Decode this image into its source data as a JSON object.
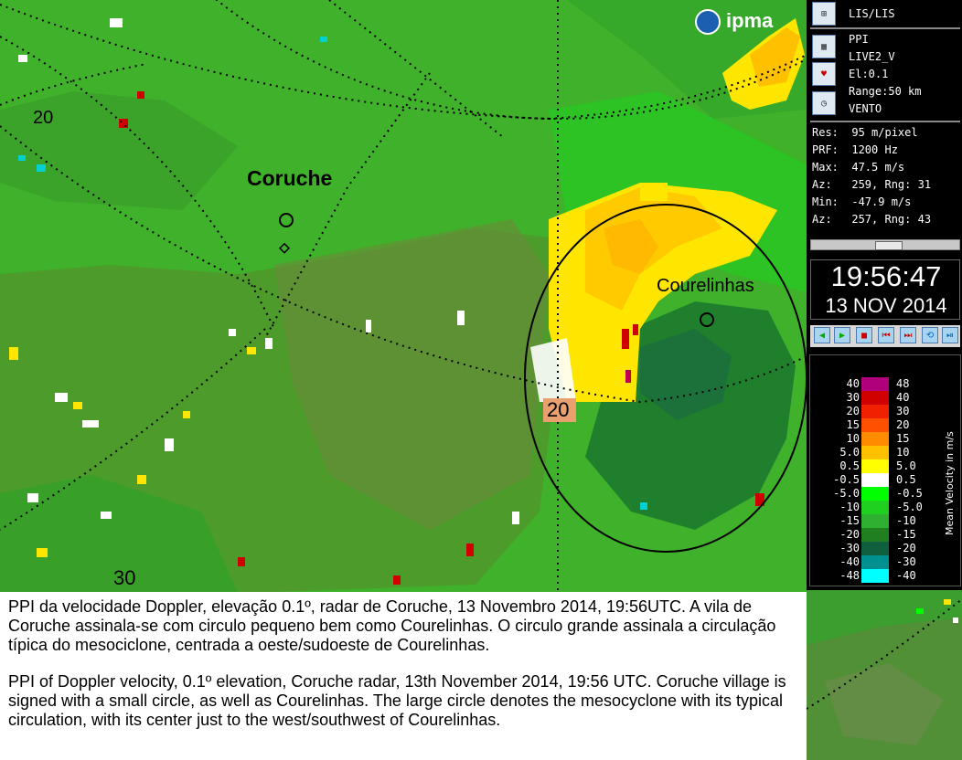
{
  "map": {
    "places": [
      "Coruche",
      "Courelinhas"
    ],
    "range_labels": [
      "20",
      "20",
      "30"
    ]
  },
  "logo": {
    "text": "ipma"
  },
  "panel": {
    "source": "LIS/LIS",
    "product_lines": [
      "PPI",
      "LIVE2_V",
      "El:0.1",
      "Range:50 km",
      "VENTO"
    ],
    "info_lines": [
      "Res:  95 m/pixel",
      "PRF:  1200 Hz",
      "Max:  47.5 m/s",
      "Az:   259, Rng: 31",
      "Min:  -47.9 m/s",
      "Az:   257, Rng: 43"
    ],
    "time": "19:56:47",
    "date": "13 NOV 2014",
    "icons": [
      "sat-icon",
      "grid-icon",
      "radar-icon",
      "clock-icon"
    ]
  },
  "legend": {
    "unit": "Mean Velocity in m/s",
    "rows": [
      {
        "left": "40",
        "right": "48",
        "color": "#b0007a"
      },
      {
        "left": "30",
        "right": "40",
        "color": "#d00000"
      },
      {
        "left": "20",
        "right": "30",
        "color": "#f02000"
      },
      {
        "left": "15",
        "right": "20",
        "color": "#ff5000"
      },
      {
        "left": "10",
        "right": "15",
        "color": "#ff8c00"
      },
      {
        "left": "5.0",
        "right": "10",
        "color": "#ffc000"
      },
      {
        "left": "0.5",
        "right": "5.0",
        "color": "#ffff00"
      },
      {
        "left": "-0.5",
        "right": "0.5",
        "color": "#ffffff"
      },
      {
        "left": "-5.0",
        "right": "-0.5",
        "color": "#00ff00"
      },
      {
        "left": "-10",
        "right": "-5.0",
        "color": "#20d020"
      },
      {
        "left": "-15",
        "right": "-10",
        "color": "#30b030"
      },
      {
        "left": "-20",
        "right": "-15",
        "color": "#208020"
      },
      {
        "left": "-30",
        "right": "-20",
        "color": "#106040"
      },
      {
        "left": "-40",
        "right": "-30",
        "color": "#009090"
      },
      {
        "left": "-48",
        "right": "-40",
        "color": "#00ffff"
      }
    ]
  },
  "caption": {
    "pt": "PPI da velocidade Doppler, elevação 0.1º, radar de Coruche, 13 Novembro 2014, 19:56UTC. A vila de Coruche assinala-se com circulo pequeno bem como Courelinhas. O circulo grande assinala a circulação típica do mesociclone, centrada a oeste/sudoeste de Courelinhas.",
    "en": "PPI of Doppler velocity, 0.1º elevation, Coruche radar, 13th November 2014, 19:56 UTC. Coruche village is signed with a small circle, as well as Courelinhas. The large circle denotes the mesocyclone with its typical circulation, with its center just to the west/southwest of Courelinhas."
  }
}
